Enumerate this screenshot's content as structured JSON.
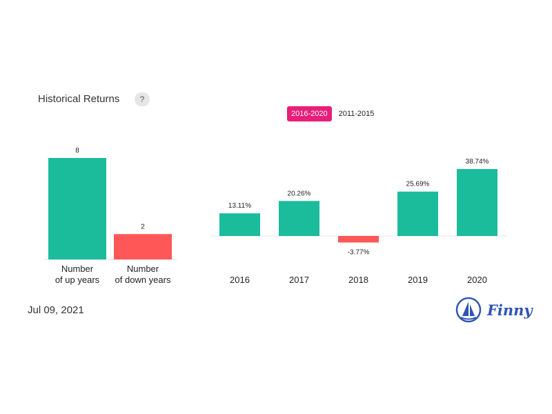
{
  "header": {
    "title": "Historical Returns",
    "help_label": "?"
  },
  "tabs": [
    {
      "label": "2016-2020",
      "active": true
    },
    {
      "label": "2011-2015",
      "active": false
    }
  ],
  "footer": {
    "date": "Jul 09, 2021",
    "brand": "Finny"
  },
  "colors": {
    "positive": "#1abc9c",
    "negative": "#ff5757",
    "accent": "#e91e7a",
    "brand": "#2f55b4"
  },
  "chart_data": [
    {
      "type": "bar",
      "categories": [
        [
          "Number",
          "of up years"
        ],
        [
          "Number",
          "of down years"
        ]
      ],
      "values": [
        8,
        2
      ],
      "value_labels": [
        "8",
        "2"
      ],
      "ylim": [
        0,
        8
      ]
    },
    {
      "type": "bar",
      "categories": [
        "2016",
        "2017",
        "2018",
        "2019",
        "2020"
      ],
      "values": [
        13.11,
        20.26,
        -3.77,
        25.69,
        38.74
      ],
      "value_labels": [
        "13.11%",
        "20.26%",
        "-3.77%",
        "25.69%",
        "38.74%"
      ],
      "ylim": [
        -3.77,
        38.74
      ]
    }
  ]
}
